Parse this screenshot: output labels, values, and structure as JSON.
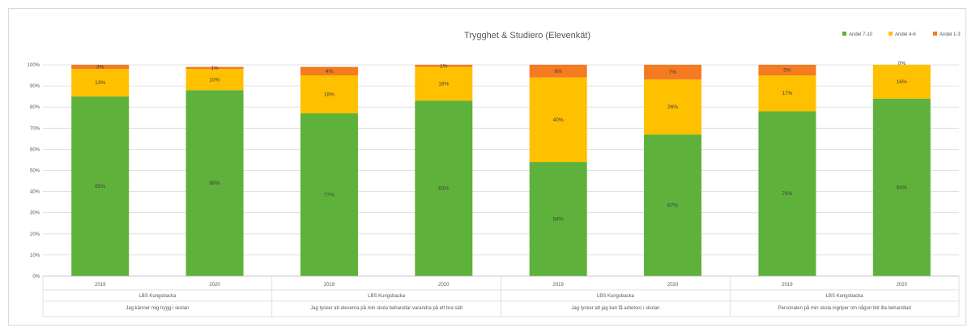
{
  "chart_data": {
    "type": "bar",
    "stacked": true,
    "title": "Trygghet & Studiero (Elevenkät)",
    "y_ticks": [
      "0%",
      "10%",
      "20%",
      "30%",
      "40%",
      "50%",
      "60%",
      "70%",
      "80%",
      "90%",
      "100%"
    ],
    "ylim": [
      0,
      100
    ],
    "grid": true,
    "legend_position": "top-right",
    "group_label": "LBS Kungsbacka",
    "groups": [
      "Jag känner mig trygg i skolan",
      "Jag tycker att eleverna på min skola behandlar varandra på ett bra sätt",
      "Jag tycker att jag kan få arbetsro i skolan",
      "Personalen på min skola ingriper om någon blir illa behandlad"
    ],
    "categories": [
      "2019",
      "2020",
      "2019",
      "2020",
      "2019",
      "2020",
      "2019",
      "2020"
    ],
    "series": [
      {
        "name": "Andel 7-10",
        "color": "#5eb13a",
        "values": [
          85,
          88,
          77,
          83,
          54,
          67,
          78,
          84
        ],
        "labels": [
          "85%",
          "88%",
          "77%",
          "83%",
          "54%",
          "67%",
          "78%",
          "84%"
        ]
      },
      {
        "name": "Andel 4-6",
        "color": "#ffc000",
        "values": [
          13,
          10,
          18,
          16,
          40,
          26,
          17,
          16
        ],
        "labels": [
          "13%",
          "10%",
          "18%",
          "16%",
          "40%",
          "26%",
          "17%",
          "16%"
        ]
      },
      {
        "name": "Andel 1-3",
        "color": "#f47b20",
        "values": [
          3,
          1,
          4,
          1,
          6,
          7,
          5,
          0
        ],
        "labels": [
          "3%",
          "1%",
          "4%",
          "1%",
          "6%",
          "7%",
          "5%",
          "0%"
        ]
      }
    ]
  }
}
